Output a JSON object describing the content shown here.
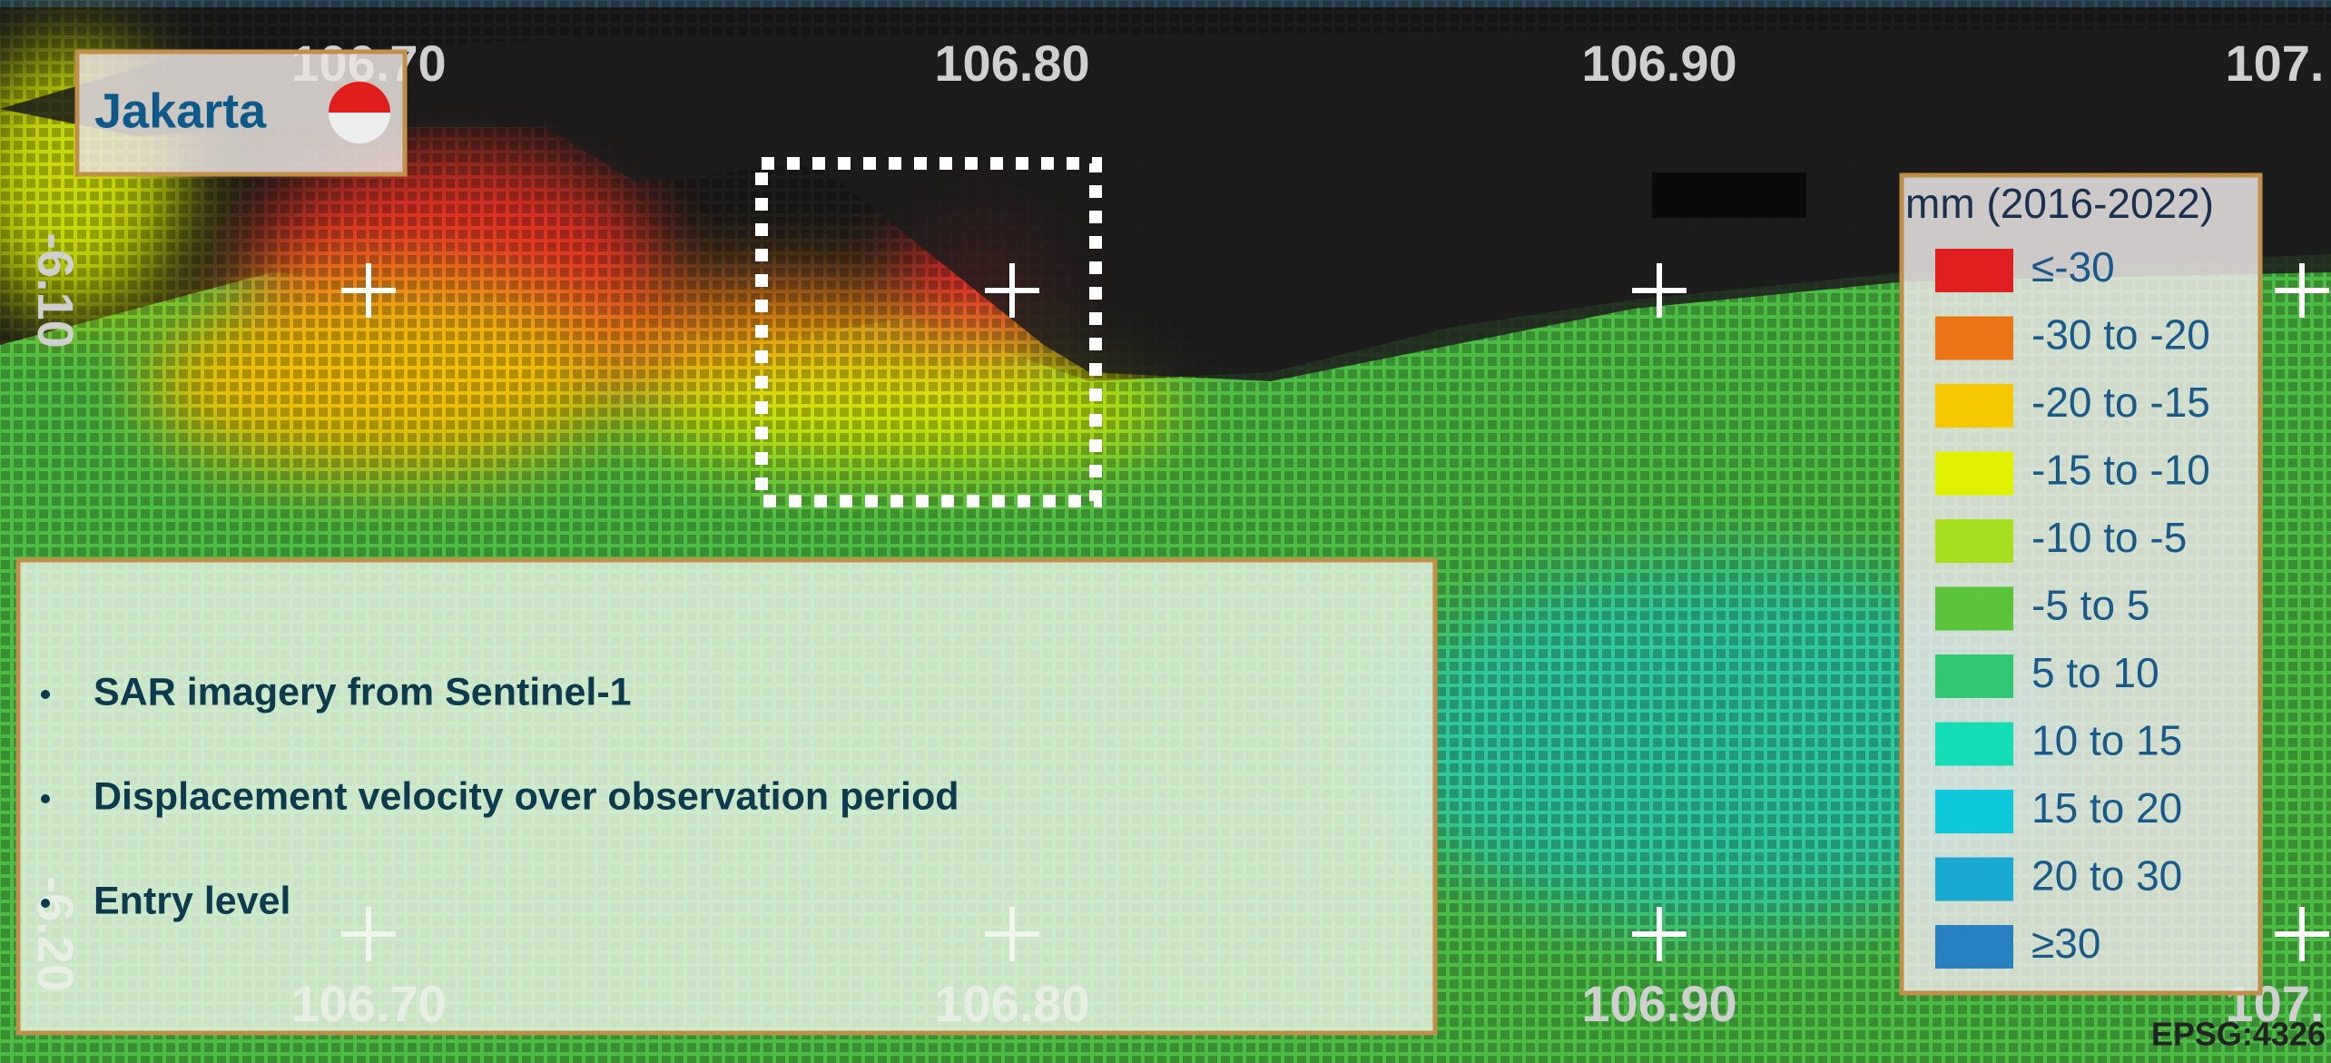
{
  "header": {
    "title": "Jakarta"
  },
  "grid_labels": {
    "top": [
      "106.70",
      "106.80",
      "106.90",
      "107."
    ],
    "bottom": [
      "106.70",
      "106.80",
      "106.90",
      "107."
    ],
    "left": [
      "-6.10",
      "-6.20"
    ]
  },
  "legend": {
    "title": "mm (2016-2022)",
    "items": [
      {
        "label": "≤-30",
        "color": "#e02020"
      },
      {
        "label": "-30 to -20",
        "color": "#ec7414"
      },
      {
        "label": "-20 to -15",
        "color": "#f6c800"
      },
      {
        "label": "-15 to -10",
        "color": "#e0f000"
      },
      {
        "label": "-10 to -5",
        "color": "#a8de20"
      },
      {
        "label": "-5 to 5",
        "color": "#5cc43c"
      },
      {
        "label": "5 to 10",
        "color": "#30c874"
      },
      {
        "label": "10 to 15",
        "color": "#14dcb4"
      },
      {
        "label": "15 to 20",
        "color": "#10c8dc"
      },
      {
        "label": "20 to 30",
        "color": "#18a8d0"
      },
      {
        "label": "≥30",
        "color": "#2880c0"
      }
    ]
  },
  "info": {
    "bullets": [
      "SAR imagery from Sentinel-1",
      "Displacement velocity over observation period",
      "Entry level"
    ]
  },
  "footer": {
    "crs": "EPSG:4326"
  }
}
